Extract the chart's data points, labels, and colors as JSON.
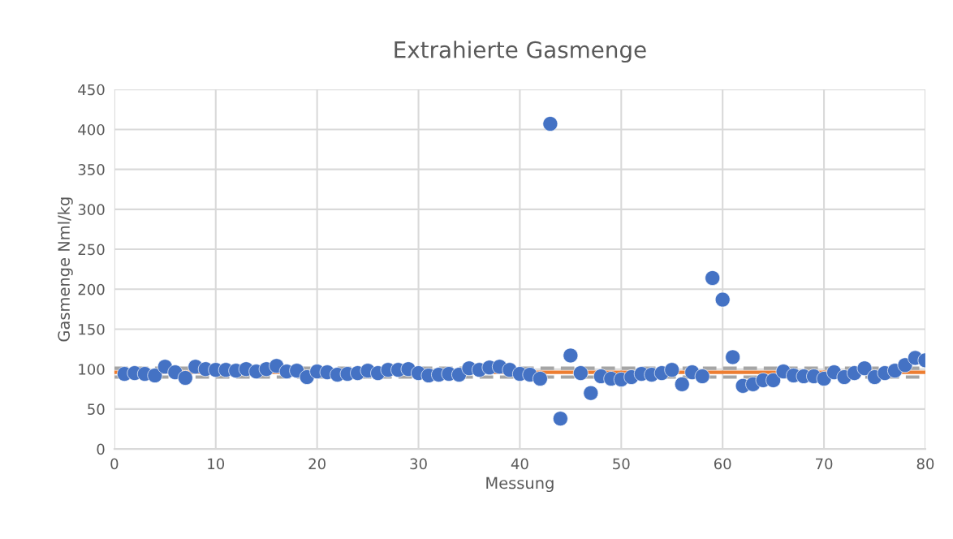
{
  "chart_data": {
    "type": "scatter",
    "title": "Extrahierte Gasmenge",
    "xlabel": "Messung",
    "ylabel": "Gasmenge Nml/kg",
    "x": [
      1,
      2,
      3,
      4,
      5,
      6,
      7,
      8,
      9,
      10,
      11,
      12,
      13,
      14,
      15,
      16,
      17,
      18,
      19,
      20,
      21,
      22,
      23,
      24,
      25,
      26,
      27,
      28,
      29,
      30,
      31,
      32,
      33,
      34,
      35,
      36,
      37,
      38,
      39,
      40,
      41,
      42,
      43,
      44,
      45,
      46,
      47,
      48,
      49,
      50,
      51,
      52,
      53,
      54,
      55,
      56,
      57,
      58,
      59,
      60,
      61,
      62,
      63,
      64,
      65,
      66,
      67,
      68,
      69,
      70,
      71,
      72,
      73,
      74,
      75,
      76,
      77,
      78,
      79,
      80
    ],
    "series": [
      {
        "color": "#4472c4",
        "values": [
          94,
          95,
          94,
          92,
          103,
          96,
          89,
          103,
          100,
          99,
          99,
          98,
          100,
          97,
          100,
          104,
          97,
          98,
          90,
          97,
          96,
          93,
          94,
          95,
          98,
          95,
          99,
          99,
          100,
          95,
          92,
          93,
          94,
          93,
          101,
          99,
          102,
          103,
          99,
          94,
          93,
          88,
          407,
          38,
          117,
          95,
          70,
          91,
          88,
          87,
          90,
          94,
          93,
          95,
          99,
          81,
          96,
          91,
          214,
          187,
          115,
          79,
          81,
          86,
          86,
          97,
          92,
          91,
          91,
          88,
          96,
          90,
          95,
          101,
          90,
          95,
          98,
          105,
          114,
          111
        ]
      }
    ],
    "ref_lines": [
      {
        "axis": "y",
        "value": 96,
        "color": "#ed7d31",
        "line_style": "solid"
      },
      {
        "axis": "y",
        "value": 101,
        "color": "#a5a5a5",
        "line_style": "dashed"
      },
      {
        "axis": "y",
        "value": 90,
        "color": "#a5a5a5",
        "line_style": "dashed"
      }
    ],
    "xlim": [
      0,
      80
    ],
    "xticks": [
      0,
      10,
      20,
      30,
      40,
      50,
      60,
      70,
      80
    ],
    "ylim": [
      0,
      450
    ],
    "yticks": [
      0,
      50,
      100,
      150,
      200,
      250,
      300,
      350,
      400,
      450
    ],
    "grid": true,
    "marker": "circle",
    "legend": false
  }
}
